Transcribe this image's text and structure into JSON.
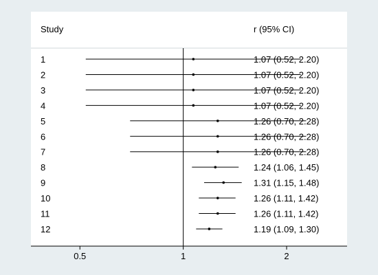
{
  "chart_data": {
    "type": "forest",
    "headers": {
      "study": "Study",
      "estimate": "r (95% CI)"
    },
    "x_scale": "log",
    "xlim": [
      0.36,
      3.0
    ],
    "null_line": 1,
    "xticks": [
      {
        "value": 0.5,
        "label": "0.5"
      },
      {
        "value": 1,
        "label": "1"
      },
      {
        "value": 2,
        "label": "2"
      }
    ],
    "rows": [
      {
        "study": "1",
        "est": 1.07,
        "lo": 0.52,
        "hi": 2.2,
        "label": "1.07 (0.52, 2.20)"
      },
      {
        "study": "2",
        "est": 1.07,
        "lo": 0.52,
        "hi": 2.2,
        "label": "1.07 (0.52, 2.20)"
      },
      {
        "study": "3",
        "est": 1.07,
        "lo": 0.52,
        "hi": 2.2,
        "label": "1.07 (0.52, 2.20)"
      },
      {
        "study": "4",
        "est": 1.07,
        "lo": 0.52,
        "hi": 2.2,
        "label": "1.07 (0.52, 2.20)"
      },
      {
        "study": "5",
        "est": 1.26,
        "lo": 0.7,
        "hi": 2.28,
        "label": "1.26 (0.70, 2.28)"
      },
      {
        "study": "6",
        "est": 1.26,
        "lo": 0.7,
        "hi": 2.28,
        "label": "1.26 (0.70, 2.28)"
      },
      {
        "study": "7",
        "est": 1.26,
        "lo": 0.7,
        "hi": 2.28,
        "label": "1.26 (0.70, 2.28)"
      },
      {
        "study": "8",
        "est": 1.24,
        "lo": 1.06,
        "hi": 1.45,
        "label": "1.24 (1.06, 1.45)"
      },
      {
        "study": "9",
        "est": 1.31,
        "lo": 1.15,
        "hi": 1.48,
        "label": "1.31 (1.15, 1.48)"
      },
      {
        "study": "10",
        "est": 1.26,
        "lo": 1.11,
        "hi": 1.42,
        "label": "1.26 (1.11, 1.42)"
      },
      {
        "study": "11",
        "est": 1.26,
        "lo": 1.11,
        "hi": 1.42,
        "label": "1.26 (1.11, 1.42)"
      },
      {
        "study": "12",
        "est": 1.19,
        "lo": 1.09,
        "hi": 1.3,
        "label": "1.19 (1.09, 1.30)"
      }
    ],
    "colors": {
      "background": "#e8eef1",
      "panel": "#ffffff",
      "ink": "#000000"
    }
  }
}
